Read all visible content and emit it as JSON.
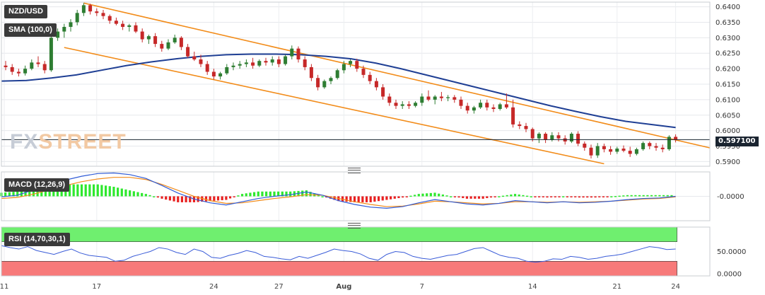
{
  "chart_data": [
    {
      "type": "candlestick",
      "title": "NZD/USD",
      "indicator_label": "SMA (100,0)",
      "current_price": "0.597100",
      "y_ticks": [
        "0.6400",
        "0.6350",
        "0.6300",
        "0.6250",
        "0.6200",
        "0.6150",
        "0.6100",
        "0.6050",
        "0.6000",
        "0.5950",
        "0.5900"
      ],
      "ylim": [
        0.5885,
        0.6415
      ],
      "x_ticks": [
        "11",
        "17",
        "24",
        "27",
        "Aug",
        "7",
        "14",
        "21",
        "24"
      ],
      "candles": [
        [
          0,
          0.621,
          0.6225,
          0.6195,
          0.6205
        ],
        [
          1,
          0.6205,
          0.6215,
          0.618,
          0.619
        ],
        [
          2,
          0.619,
          0.62,
          0.6175,
          0.6185
        ],
        [
          3,
          0.6185,
          0.621,
          0.6178,
          0.62
        ],
        [
          4,
          0.62,
          0.623,
          0.6195,
          0.622
        ],
        [
          5,
          0.622,
          0.624,
          0.6205,
          0.6215
        ],
        [
          6,
          0.6215,
          0.6225,
          0.6185,
          0.6195
        ],
        [
          7,
          0.6195,
          0.631,
          0.619,
          0.63
        ],
        [
          8,
          0.63,
          0.633,
          0.629,
          0.632
        ],
        [
          9,
          0.632,
          0.6345,
          0.63,
          0.6335
        ],
        [
          10,
          0.6335,
          0.636,
          0.632,
          0.635
        ],
        [
          11,
          0.635,
          0.639,
          0.634,
          0.638
        ],
        [
          12,
          0.638,
          0.6412,
          0.637,
          0.6405
        ],
        [
          13,
          0.6405,
          0.641,
          0.6375,
          0.6385
        ],
        [
          14,
          0.6385,
          0.6395,
          0.637,
          0.638
        ],
        [
          15,
          0.638,
          0.639,
          0.636,
          0.637
        ],
        [
          16,
          0.637,
          0.6375,
          0.6345,
          0.6355
        ],
        [
          17,
          0.6355,
          0.6365,
          0.634,
          0.6345
        ],
        [
          18,
          0.6345,
          0.6355,
          0.6325,
          0.6335
        ],
        [
          19,
          0.6335,
          0.6345,
          0.632,
          0.634
        ],
        [
          20,
          0.634,
          0.635,
          0.6315,
          0.632
        ],
        [
          21,
          0.632,
          0.633,
          0.6285,
          0.6295
        ],
        [
          22,
          0.6295,
          0.631,
          0.628,
          0.6305
        ],
        [
          23,
          0.6305,
          0.6315,
          0.627,
          0.628
        ],
        [
          24,
          0.628,
          0.629,
          0.6255,
          0.6265
        ],
        [
          25,
          0.6265,
          0.6295,
          0.626,
          0.6285
        ],
        [
          26,
          0.6285,
          0.631,
          0.628,
          0.63
        ],
        [
          27,
          0.63,
          0.6305,
          0.626,
          0.627
        ],
        [
          28,
          0.627,
          0.628,
          0.6235,
          0.624
        ],
        [
          29,
          0.624,
          0.6255,
          0.6225,
          0.623
        ],
        [
          30,
          0.623,
          0.6245,
          0.6205,
          0.6215
        ],
        [
          31,
          0.6215,
          0.6225,
          0.618,
          0.619
        ],
        [
          32,
          0.619,
          0.62,
          0.6165,
          0.6175
        ],
        [
          33,
          0.6175,
          0.619,
          0.6165,
          0.6185
        ],
        [
          34,
          0.6185,
          0.6215,
          0.618,
          0.6205
        ],
        [
          35,
          0.6205,
          0.622,
          0.6195,
          0.621
        ],
        [
          36,
          0.621,
          0.6225,
          0.62,
          0.6215
        ],
        [
          37,
          0.6215,
          0.623,
          0.6205,
          0.622
        ],
        [
          38,
          0.622,
          0.6235,
          0.62,
          0.621
        ],
        [
          39,
          0.621,
          0.623,
          0.6205,
          0.6225
        ],
        [
          40,
          0.6225,
          0.6235,
          0.621,
          0.622
        ],
        [
          41,
          0.622,
          0.624,
          0.621,
          0.623
        ],
        [
          42,
          0.623,
          0.624,
          0.6205,
          0.6215
        ],
        [
          43,
          0.6215,
          0.6245,
          0.621,
          0.624
        ],
        [
          44,
          0.624,
          0.6275,
          0.623,
          0.6265
        ],
        [
          45,
          0.6265,
          0.6272,
          0.622,
          0.623
        ],
        [
          46,
          0.623,
          0.624,
          0.6195,
          0.6205
        ],
        [
          47,
          0.6205,
          0.6215,
          0.616,
          0.617
        ],
        [
          48,
          0.617,
          0.618,
          0.613,
          0.614
        ],
        [
          49,
          0.614,
          0.6165,
          0.6135,
          0.616
        ],
        [
          50,
          0.616,
          0.6175,
          0.615,
          0.617
        ],
        [
          51,
          0.617,
          0.62,
          0.6165,
          0.6195
        ],
        [
          52,
          0.6195,
          0.6225,
          0.6185,
          0.6215
        ],
        [
          53,
          0.6215,
          0.623,
          0.6205,
          0.6225
        ],
        [
          54,
          0.6225,
          0.6232,
          0.619,
          0.62
        ],
        [
          55,
          0.62,
          0.621,
          0.617,
          0.618
        ],
        [
          56,
          0.618,
          0.619,
          0.615,
          0.616
        ],
        [
          57,
          0.616,
          0.617,
          0.613,
          0.614
        ],
        [
          58,
          0.614,
          0.615,
          0.61,
          0.611
        ],
        [
          59,
          0.611,
          0.612,
          0.608,
          0.609
        ],
        [
          60,
          0.609,
          0.61,
          0.607,
          0.608
        ],
        [
          61,
          0.608,
          0.6095,
          0.607,
          0.6085
        ],
        [
          62,
          0.6085,
          0.6095,
          0.607,
          0.608
        ],
        [
          63,
          0.608,
          0.6095,
          0.6075,
          0.609
        ],
        [
          64,
          0.609,
          0.612,
          0.608,
          0.611
        ],
        [
          65,
          0.611,
          0.613,
          0.6095,
          0.61
        ],
        [
          66,
          0.61,
          0.6115,
          0.6085,
          0.611
        ],
        [
          67,
          0.611,
          0.6125,
          0.6095,
          0.6105
        ],
        [
          68,
          0.6105,
          0.6115,
          0.6095,
          0.6108
        ],
        [
          69,
          0.6108,
          0.6115,
          0.609,
          0.61
        ],
        [
          70,
          0.61,
          0.611,
          0.607,
          0.608
        ],
        [
          71,
          0.608,
          0.609,
          0.6055,
          0.6065
        ],
        [
          72,
          0.6065,
          0.608,
          0.6055,
          0.6075
        ],
        [
          73,
          0.6075,
          0.61,
          0.607,
          0.609
        ],
        [
          74,
          0.609,
          0.61,
          0.6065,
          0.6075
        ],
        [
          75,
          0.6075,
          0.6085,
          0.606,
          0.607
        ],
        [
          76,
          0.607,
          0.609,
          0.6065,
          0.6085
        ],
        [
          77,
          0.6085,
          0.612,
          0.607,
          0.6075
        ],
        [
          78,
          0.6075,
          0.61,
          0.601,
          0.602
        ],
        [
          79,
          0.602,
          0.603,
          0.6005,
          0.6015
        ],
        [
          80,
          0.6015,
          0.6025,
          0.5995,
          0.6005
        ],
        [
          81,
          0.6005,
          0.601,
          0.5965,
          0.5975
        ],
        [
          82,
          0.5975,
          0.5995,
          0.596,
          0.599
        ],
        [
          83,
          0.599,
          0.5995,
          0.596,
          0.597
        ],
        [
          84,
          0.597,
          0.5995,
          0.5965,
          0.5985
        ],
        [
          85,
          0.5985,
          0.5995,
          0.5965,
          0.5975
        ],
        [
          86,
          0.5975,
          0.5985,
          0.5955,
          0.5965
        ],
        [
          87,
          0.5965,
          0.5995,
          0.596,
          0.599
        ],
        [
          88,
          0.599,
          0.5998,
          0.595,
          0.5958
        ],
        [
          89,
          0.5958,
          0.5965,
          0.5935,
          0.5945
        ],
        [
          90,
          0.5945,
          0.5955,
          0.591,
          0.592
        ],
        [
          91,
          0.592,
          0.596,
          0.5912,
          0.595
        ],
        [
          92,
          0.595,
          0.5958,
          0.593,
          0.594
        ],
        [
          93,
          0.594,
          0.595,
          0.5922,
          0.5932
        ],
        [
          94,
          0.5932,
          0.5948,
          0.5925,
          0.5942
        ],
        [
          95,
          0.5942,
          0.5952,
          0.593,
          0.5935
        ],
        [
          96,
          0.5935,
          0.5948,
          0.5915,
          0.5925
        ],
        [
          97,
          0.5925,
          0.5945,
          0.592,
          0.594
        ],
        [
          98,
          0.594,
          0.5965,
          0.5935,
          0.596
        ],
        [
          99,
          0.596,
          0.5965,
          0.594,
          0.595
        ],
        [
          100,
          0.595,
          0.596,
          0.5935,
          0.5945
        ],
        [
          101,
          0.5945,
          0.5955,
          0.593,
          0.594
        ],
        [
          102,
          0.594,
          0.5985,
          0.5935,
          0.598
        ],
        [
          103,
          0.598,
          0.5988,
          0.5962,
          0.5971
        ]
      ],
      "sma": [
        0.616,
        0.6162,
        0.617,
        0.618,
        0.6195,
        0.621,
        0.6222,
        0.6232,
        0.624,
        0.6245,
        0.6247,
        0.6247,
        0.6245,
        0.624,
        0.6232,
        0.6218,
        0.62,
        0.618,
        0.616,
        0.614,
        0.612,
        0.61,
        0.608,
        0.6062,
        0.6045,
        0.603,
        0.602,
        0.601
      ],
      "channel_upper": [
        [
          12,
          0.6412
        ],
        [
          103,
          0.597
        ]
      ],
      "channel_lower": [
        [
          12,
          0.6255
        ],
        [
          92,
          0.5893
        ]
      ],
      "colors": {
        "up": "#2e7d32",
        "down": "#c62828",
        "sma": "#1f3f94",
        "channel": "#f28c1a"
      }
    },
    {
      "type": "line",
      "title": "MACD (12,26,9)",
      "y_ticks": [
        "-0.0000"
      ],
      "ylim": [
        -0.0045,
        0.0045
      ],
      "macd": [
        -0.0001,
        0.0002,
        0.0012,
        0.0022,
        0.003,
        0.0037,
        0.0042,
        0.0043,
        0.004,
        0.0033,
        0.002,
        0.0006,
        -0.0005,
        -0.0012,
        -0.0016,
        -0.001,
        -0.0004,
        0.0,
        0.0003,
        0.0008,
        0.0002,
        -0.0008,
        -0.0015,
        -0.002,
        -0.0022,
        -0.0019,
        -0.0012,
        -0.0006,
        -0.001,
        -0.0014,
        -0.0016,
        -0.0013,
        -0.0008,
        -0.001,
        -0.0012,
        -0.001,
        -0.0012,
        -0.0011,
        -0.0009,
        -0.0006,
        -0.0004,
        -0.0003,
        0.0
      ],
      "signal": [
        -0.0004,
        -0.0002,
        0.0004,
        0.0012,
        0.002,
        0.0027,
        0.0032,
        0.0035,
        0.0035,
        0.0031,
        0.0022,
        0.0011,
        0.0,
        -0.0008,
        -0.0013,
        -0.0012,
        -0.0008,
        -0.0004,
        -0.0001,
        0.0003,
        0.0002,
        -0.0004,
        -0.001,
        -0.0015,
        -0.0019,
        -0.0018,
        -0.0014,
        -0.0009,
        -0.001,
        -0.0012,
        -0.0014,
        -0.0013,
        -0.001,
        -0.001,
        -0.0011,
        -0.001,
        -0.0011,
        -0.001,
        -0.0009,
        -0.0007,
        -0.0005,
        -0.0004,
        -0.0001
      ],
      "colors": {
        "macd": "#2f5bd6",
        "signal": "#f28c1a",
        "hist_up": "#2ee82e",
        "hist_down": "#e82020"
      }
    },
    {
      "type": "line",
      "title": "RSI (14,70,30,1)",
      "y_ticks": [
        "50.0000",
        "0.0000"
      ],
      "ylim": [
        0,
        100
      ],
      "overbought": 70,
      "oversold": 30,
      "rsi": [
        62,
        58,
        55,
        60,
        52,
        48,
        44,
        50,
        55,
        47,
        42,
        40,
        38,
        30,
        32,
        40,
        45,
        50,
        58,
        55,
        48,
        44,
        55,
        50,
        38,
        36,
        42,
        46,
        52,
        48,
        40,
        38,
        35,
        33,
        40,
        36,
        42,
        48,
        55,
        52,
        50,
        45,
        36,
        32,
        44,
        50,
        48,
        40,
        36,
        34,
        38,
        42,
        44,
        50,
        56,
        58,
        50,
        42,
        38,
        36,
        30,
        28,
        30,
        35,
        34,
        40,
        38,
        34,
        36,
        40,
        42,
        45,
        50,
        55,
        60,
        58,
        54,
        55
      ],
      "colors": {
        "overbought": "#6fef6f",
        "oversold": "#f77a7a",
        "line": "#3a5cd8"
      }
    }
  ],
  "watermark": {
    "part1": "FX",
    "part2": "STREET"
  }
}
